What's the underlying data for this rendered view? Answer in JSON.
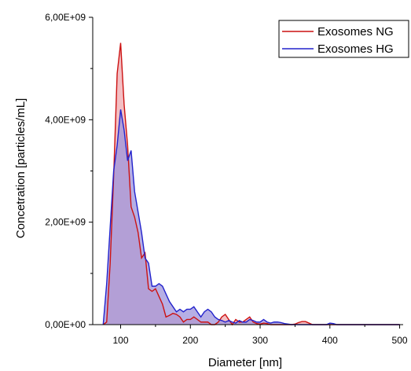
{
  "chart_data": {
    "type": "area",
    "xlabel": "Diameter [nm]",
    "ylabel": "Concetration [particles/mL]",
    "xlim": [
      60,
      505
    ],
    "ylim": [
      0,
      6000000000
    ],
    "x_ticks": [
      100,
      200,
      300,
      400,
      500
    ],
    "x_tick_labels": [
      "100",
      "200",
      "300",
      "400",
      "500"
    ],
    "y_ticks": [
      0,
      2000000000,
      4000000000,
      6000000000
    ],
    "y_tick_labels": [
      "0,00E+00",
      "2,00E+09",
      "4,00E+09",
      "6,00E+09"
    ],
    "legend_position": "top-right",
    "grid": false,
    "series": [
      {
        "name": "Exosomes NG",
        "color": "#cc1111",
        "fill": "#f2b8bd",
        "x": [
          75,
          80,
          85,
          90,
          95,
          100,
          105,
          110,
          115,
          120,
          125,
          130,
          135,
          140,
          145,
          150,
          155,
          160,
          165,
          170,
          175,
          180,
          185,
          190,
          195,
          200,
          205,
          210,
          215,
          220,
          225,
          230,
          235,
          240,
          245,
          250,
          255,
          260,
          265,
          270,
          275,
          280,
          285,
          290,
          295,
          300,
          305,
          310,
          315,
          320,
          325,
          330,
          335,
          340,
          345,
          350,
          355,
          360,
          365,
          370,
          375,
          380,
          385,
          390,
          395,
          400,
          405,
          410,
          415,
          420,
          425,
          430,
          435,
          440,
          445,
          450,
          455,
          460,
          465,
          470,
          475,
          480,
          485,
          490,
          495,
          500
        ],
        "values": [
          0,
          50000000,
          1200000000,
          2900000000,
          4900000000,
          5500000000,
          4300000000,
          3500000000,
          2300000000,
          2100000000,
          1800000000,
          1300000000,
          1400000000,
          700000000,
          650000000,
          700000000,
          550000000,
          400000000,
          150000000,
          180000000,
          220000000,
          200000000,
          150000000,
          50000000,
          100000000,
          100000000,
          150000000,
          100000000,
          50000000,
          50000000,
          50000000,
          0,
          0,
          50000000,
          150000000,
          200000000,
          100000000,
          0,
          100000000,
          50000000,
          50000000,
          100000000,
          150000000,
          50000000,
          20000000,
          10000000,
          30000000,
          20000000,
          0,
          0,
          0,
          0,
          0,
          0,
          0,
          10000000,
          40000000,
          60000000,
          60000000,
          30000000,
          0,
          0,
          0,
          0,
          0,
          0,
          0,
          0,
          0,
          0,
          0,
          0,
          0,
          0,
          0,
          0,
          0,
          0,
          0,
          0,
          0,
          0,
          0,
          0,
          0,
          0
        ]
      },
      {
        "name": "Exosomes HG",
        "color": "#2222cc",
        "fill": "#9e94dc",
        "x": [
          75,
          80,
          85,
          90,
          95,
          100,
          105,
          110,
          115,
          120,
          125,
          130,
          135,
          140,
          145,
          150,
          155,
          160,
          165,
          170,
          175,
          180,
          185,
          190,
          195,
          200,
          205,
          210,
          215,
          220,
          225,
          230,
          235,
          240,
          245,
          250,
          255,
          260,
          265,
          270,
          275,
          280,
          285,
          290,
          295,
          300,
          305,
          310,
          315,
          320,
          325,
          330,
          335,
          340,
          345,
          350,
          355,
          360,
          365,
          370,
          375,
          380,
          385,
          390,
          395,
          400,
          405,
          410,
          415,
          420,
          425,
          430,
          435,
          440,
          445,
          450,
          455,
          460,
          465,
          470,
          475,
          480,
          485,
          490,
          495,
          500
        ],
        "values": [
          0,
          800000000,
          1900000000,
          3000000000,
          3500000000,
          4200000000,
          3800000000,
          3200000000,
          3400000000,
          2600000000,
          2200000000,
          1800000000,
          1300000000,
          1200000000,
          750000000,
          750000000,
          800000000,
          750000000,
          600000000,
          450000000,
          350000000,
          250000000,
          300000000,
          250000000,
          300000000,
          300000000,
          350000000,
          250000000,
          150000000,
          250000000,
          300000000,
          250000000,
          150000000,
          100000000,
          80000000,
          50000000,
          80000000,
          50000000,
          30000000,
          80000000,
          50000000,
          50000000,
          100000000,
          80000000,
          50000000,
          50000000,
          100000000,
          50000000,
          30000000,
          50000000,
          50000000,
          40000000,
          20000000,
          10000000,
          0,
          0,
          0,
          0,
          0,
          0,
          0,
          0,
          0,
          0,
          0,
          30000000,
          20000000,
          0,
          0,
          0,
          0,
          0,
          0,
          0,
          0,
          0,
          0,
          0,
          0,
          0,
          0,
          0,
          0,
          0,
          0,
          0
        ]
      }
    ]
  }
}
